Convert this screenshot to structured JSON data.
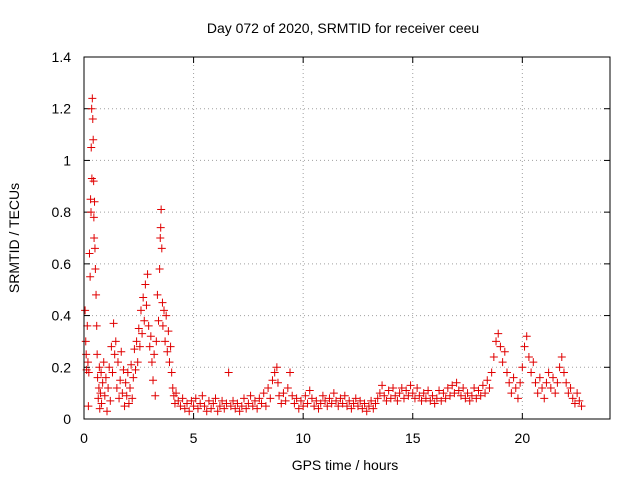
{
  "chart_data": {
    "type": "scatter",
    "title": "Day 072 of 2020, SRMTID for receiver ceeu",
    "xlabel": "GPS time / hours",
    "ylabel": "SRMTID / TECUs",
    "xlim": [
      0,
      24
    ],
    "ylim": [
      0,
      1.4
    ],
    "xticks": [
      0,
      5,
      10,
      15,
      20
    ],
    "xtick_labels": [
      "0",
      "5",
      "10",
      "15",
      "20"
    ],
    "yticks": [
      0,
      0.2,
      0.4,
      0.6,
      0.8,
      1.0,
      1.2,
      1.4
    ],
    "ytick_labels": [
      "0",
      "0.2",
      "0.4",
      "0.6",
      "0.8",
      "1",
      "1.2",
      "1.4"
    ],
    "grid": true,
    "marker": "+",
    "color": "#e00000",
    "series": [
      {
        "name": "SRMTID",
        "points": [
          [
            0.05,
            0.42
          ],
          [
            0.08,
            0.3
          ],
          [
            0.1,
            0.25
          ],
          [
            0.12,
            0.19
          ],
          [
            0.15,
            0.36
          ],
          [
            0.18,
            0.22
          ],
          [
            0.2,
            0.05
          ],
          [
            0.22,
            0.18
          ],
          [
            0.25,
            0.64
          ],
          [
            0.28,
            0.55
          ],
          [
            0.3,
            0.85
          ],
          [
            0.32,
            0.8
          ],
          [
            0.33,
            1.05
          ],
          [
            0.35,
            1.2
          ],
          [
            0.36,
            0.93
          ],
          [
            0.38,
            1.24
          ],
          [
            0.4,
            1.16
          ],
          [
            0.42,
            1.08
          ],
          [
            0.44,
            0.92
          ],
          [
            0.45,
            0.78
          ],
          [
            0.46,
            0.7
          ],
          [
            0.48,
            0.84
          ],
          [
            0.5,
            0.66
          ],
          [
            0.52,
            0.58
          ],
          [
            0.55,
            0.48
          ],
          [
            0.58,
            0.36
          ],
          [
            0.6,
            0.25
          ],
          [
            0.62,
            0.16
          ],
          [
            0.65,
            0.08
          ],
          [
            0.68,
            0.12
          ],
          [
            0.7,
            0.2
          ],
          [
            0.72,
            0.04
          ],
          [
            0.75,
            0.1
          ],
          [
            0.78,
            0.18
          ],
          [
            0.8,
            0.06
          ],
          [
            0.85,
            0.14
          ],
          [
            0.9,
            0.22
          ],
          [
            0.95,
            0.09
          ],
          [
            1.0,
            0.16
          ],
          [
            1.05,
            0.03
          ],
          [
            1.1,
            0.12
          ],
          [
            1.15,
            0.2
          ],
          [
            1.2,
            0.07
          ],
          [
            1.25,
            0.28
          ],
          [
            1.3,
            0.18
          ],
          [
            1.35,
            0.37
          ],
          [
            1.4,
            0.25
          ],
          [
            1.45,
            0.3
          ],
          [
            1.5,
            0.12
          ],
          [
            1.55,
            0.22
          ],
          [
            1.6,
            0.08
          ],
          [
            1.65,
            0.15
          ],
          [
            1.7,
            0.26
          ],
          [
            1.75,
            0.1
          ],
          [
            1.8,
            0.19
          ],
          [
            1.85,
            0.05
          ],
          [
            1.9,
            0.14
          ],
          [
            1.95,
            0.09
          ],
          [
            2.0,
            0.18
          ],
          [
            2.05,
            0.06
          ],
          [
            2.1,
            0.12
          ],
          [
            2.15,
            0.21
          ],
          [
            2.2,
            0.08
          ],
          [
            2.25,
            0.16
          ],
          [
            2.3,
            0.27
          ],
          [
            2.35,
            0.19
          ],
          [
            2.4,
            0.3
          ],
          [
            2.45,
            0.22
          ],
          [
            2.5,
            0.35
          ],
          [
            2.55,
            0.28
          ],
          [
            2.6,
            0.42
          ],
          [
            2.65,
            0.33
          ],
          [
            2.7,
            0.47
          ],
          [
            2.75,
            0.38
          ],
          [
            2.8,
            0.52
          ],
          [
            2.85,
            0.44
          ],
          [
            2.9,
            0.56
          ],
          [
            2.95,
            0.36
          ],
          [
            3.0,
            0.28
          ],
          [
            3.05,
            0.32
          ],
          [
            3.1,
            0.22
          ],
          [
            3.15,
            0.15
          ],
          [
            3.2,
            0.25
          ],
          [
            3.25,
            0.09
          ],
          [
            3.3,
            0.3
          ],
          [
            3.35,
            0.48
          ],
          [
            3.4,
            0.38
          ],
          [
            3.45,
            0.58
          ],
          [
            3.48,
            0.7
          ],
          [
            3.5,
            0.74
          ],
          [
            3.52,
            0.81
          ],
          [
            3.55,
            0.66
          ],
          [
            3.58,
            0.45
          ],
          [
            3.6,
            0.36
          ],
          [
            3.65,
            0.42
          ],
          [
            3.7,
            0.3
          ],
          [
            3.75,
            0.4
          ],
          [
            3.8,
            0.26
          ],
          [
            3.85,
            0.34
          ],
          [
            3.9,
            0.22
          ],
          [
            3.95,
            0.28
          ],
          [
            4.0,
            0.18
          ],
          [
            4.05,
            0.12
          ],
          [
            4.1,
            0.09
          ],
          [
            4.15,
            0.06
          ],
          [
            4.2,
            0.1
          ],
          [
            4.3,
            0.07
          ],
          [
            4.4,
            0.05
          ],
          [
            4.5,
            0.08
          ],
          [
            4.6,
            0.04
          ],
          [
            4.7,
            0.06
          ],
          [
            4.8,
            0.03
          ],
          [
            4.9,
            0.07
          ],
          [
            5.0,
            0.05
          ],
          [
            5.1,
            0.08
          ],
          [
            5.2,
            0.04
          ],
          [
            5.3,
            0.06
          ],
          [
            5.4,
            0.09
          ],
          [
            5.5,
            0.05
          ],
          [
            5.6,
            0.03
          ],
          [
            5.7,
            0.07
          ],
          [
            5.8,
            0.04
          ],
          [
            5.9,
            0.06
          ],
          [
            6.0,
            0.08
          ],
          [
            6.1,
            0.03
          ],
          [
            6.2,
            0.05
          ],
          [
            6.3,
            0.07
          ],
          [
            6.4,
            0.04
          ],
          [
            6.5,
            0.06
          ],
          [
            6.6,
            0.18
          ],
          [
            6.7,
            0.05
          ],
          [
            6.8,
            0.07
          ],
          [
            6.9,
            0.04
          ],
          [
            7.0,
            0.06
          ],
          [
            7.1,
            0.03
          ],
          [
            7.2,
            0.05
          ],
          [
            7.3,
            0.08
          ],
          [
            7.4,
            0.04
          ],
          [
            7.5,
            0.06
          ],
          [
            7.6,
            0.09
          ],
          [
            7.7,
            0.05
          ],
          [
            7.8,
            0.07
          ],
          [
            7.9,
            0.04
          ],
          [
            8.0,
            0.08
          ],
          [
            8.1,
            0.06
          ],
          [
            8.2,
            0.1
          ],
          [
            8.3,
            0.05
          ],
          [
            8.4,
            0.12
          ],
          [
            8.5,
            0.08
          ],
          [
            8.6,
            0.15
          ],
          [
            8.7,
            0.18
          ],
          [
            8.8,
            0.2
          ],
          [
            8.85,
            0.14
          ],
          [
            8.9,
            0.09
          ],
          [
            9.0,
            0.06
          ],
          [
            9.1,
            0.1
          ],
          [
            9.2,
            0.07
          ],
          [
            9.3,
            0.12
          ],
          [
            9.4,
            0.18
          ],
          [
            9.5,
            0.09
          ],
          [
            9.6,
            0.06
          ],
          [
            9.7,
            0.08
          ],
          [
            9.8,
            0.04
          ],
          [
            9.9,
            0.07
          ],
          [
            10.0,
            0.05
          ],
          [
            10.1,
            0.09
          ],
          [
            10.2,
            0.06
          ],
          [
            10.3,
            0.11
          ],
          [
            10.4,
            0.08
          ],
          [
            10.5,
            0.05
          ],
          [
            10.6,
            0.07
          ],
          [
            10.7,
            0.04
          ],
          [
            10.8,
            0.06
          ],
          [
            10.9,
            0.09
          ],
          [
            11.0,
            0.07
          ],
          [
            11.1,
            0.05
          ],
          [
            11.2,
            0.08
          ],
          [
            11.3,
            0.06
          ],
          [
            11.4,
            0.1
          ],
          [
            11.5,
            0.07
          ],
          [
            11.6,
            0.05
          ],
          [
            11.7,
            0.08
          ],
          [
            11.8,
            0.06
          ],
          [
            11.9,
            0.09
          ],
          [
            12.0,
            0.05
          ],
          [
            12.1,
            0.07
          ],
          [
            12.2,
            0.04
          ],
          [
            12.3,
            0.06
          ],
          [
            12.4,
            0.08
          ],
          [
            12.5,
            0.05
          ],
          [
            12.6,
            0.07
          ],
          [
            12.7,
            0.04
          ],
          [
            12.8,
            0.06
          ],
          [
            12.9,
            0.03
          ],
          [
            13.0,
            0.05
          ],
          [
            13.1,
            0.07
          ],
          [
            13.2,
            0.04
          ],
          [
            13.3,
            0.06
          ],
          [
            13.4,
            0.08
          ],
          [
            13.5,
            0.1
          ],
          [
            13.6,
            0.13
          ],
          [
            13.7,
            0.09
          ],
          [
            13.8,
            0.07
          ],
          [
            13.9,
            0.11
          ],
          [
            14.0,
            0.08
          ],
          [
            14.1,
            0.12
          ],
          [
            14.2,
            0.09
          ],
          [
            14.3,
            0.07
          ],
          [
            14.4,
            0.1
          ],
          [
            14.5,
            0.12
          ],
          [
            14.6,
            0.08
          ],
          [
            14.7,
            0.11
          ],
          [
            14.8,
            0.09
          ],
          [
            14.9,
            0.13
          ],
          [
            15.0,
            0.1
          ],
          [
            15.1,
            0.08
          ],
          [
            15.2,
            0.12
          ],
          [
            15.3,
            0.09
          ],
          [
            15.4,
            0.07
          ],
          [
            15.5,
            0.1
          ],
          [
            15.6,
            0.08
          ],
          [
            15.7,
            0.11
          ],
          [
            15.8,
            0.07
          ],
          [
            15.9,
            0.09
          ],
          [
            16.0,
            0.06
          ],
          [
            16.1,
            0.08
          ],
          [
            16.2,
            0.11
          ],
          [
            16.3,
            0.07
          ],
          [
            16.4,
            0.1
          ],
          [
            16.5,
            0.08
          ],
          [
            16.6,
            0.12
          ],
          [
            16.7,
            0.09
          ],
          [
            16.8,
            0.13
          ],
          [
            16.9,
            0.1
          ],
          [
            17.0,
            0.14
          ],
          [
            17.1,
            0.11
          ],
          [
            17.2,
            0.09
          ],
          [
            17.3,
            0.12
          ],
          [
            17.4,
            0.08
          ],
          [
            17.5,
            0.1
          ],
          [
            17.6,
            0.07
          ],
          [
            17.7,
            0.09
          ],
          [
            17.8,
            0.12
          ],
          [
            17.9,
            0.08
          ],
          [
            18.0,
            0.11
          ],
          [
            18.1,
            0.09
          ],
          [
            18.2,
            0.13
          ],
          [
            18.3,
            0.1
          ],
          [
            18.4,
            0.15
          ],
          [
            18.5,
            0.12
          ],
          [
            18.6,
            0.18
          ],
          [
            18.7,
            0.24
          ],
          [
            18.8,
            0.3
          ],
          [
            18.9,
            0.33
          ],
          [
            19.0,
            0.28
          ],
          [
            19.1,
            0.22
          ],
          [
            19.2,
            0.26
          ],
          [
            19.3,
            0.18
          ],
          [
            19.4,
            0.14
          ],
          [
            19.5,
            0.1
          ],
          [
            19.6,
            0.16
          ],
          [
            19.7,
            0.12
          ],
          [
            19.8,
            0.08
          ],
          [
            19.9,
            0.14
          ],
          [
            20.0,
            0.2
          ],
          [
            20.1,
            0.28
          ],
          [
            20.2,
            0.32
          ],
          [
            20.3,
            0.24
          ],
          [
            20.4,
            0.18
          ],
          [
            20.5,
            0.22
          ],
          [
            20.6,
            0.14
          ],
          [
            20.7,
            0.1
          ],
          [
            20.8,
            0.16
          ],
          [
            20.9,
            0.12
          ],
          [
            21.0,
            0.08
          ],
          [
            21.1,
            0.14
          ],
          [
            21.2,
            0.18
          ],
          [
            21.3,
            0.12
          ],
          [
            21.4,
            0.16
          ],
          [
            21.5,
            0.1
          ],
          [
            21.6,
            0.14
          ],
          [
            21.7,
            0.2
          ],
          [
            21.8,
            0.24
          ],
          [
            21.9,
            0.18
          ],
          [
            22.0,
            0.14
          ],
          [
            22.1,
            0.1
          ],
          [
            22.2,
            0.12
          ],
          [
            22.3,
            0.08
          ],
          [
            22.4,
            0.06
          ],
          [
            22.5,
            0.1
          ],
          [
            22.6,
            0.07
          ],
          [
            22.7,
            0.05
          ]
        ]
      }
    ]
  }
}
